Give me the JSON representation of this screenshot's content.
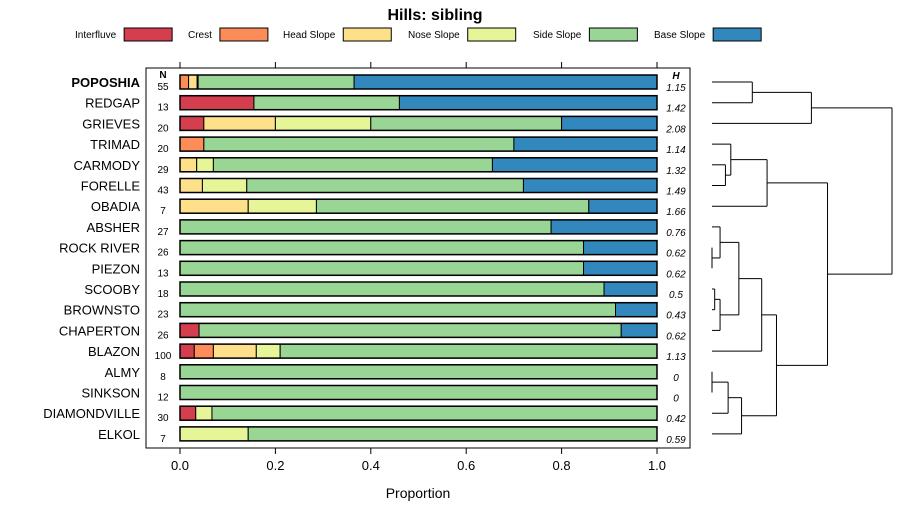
{
  "chart_data": {
    "type": "bar",
    "orientation": "horizontal",
    "stacked": true,
    "title": "Hills: sibling",
    "xlabel": "Proportion",
    "ylabel": "",
    "xlim": [
      0,
      1
    ],
    "x_ticks": [
      0.0,
      0.2,
      0.4,
      0.6,
      0.8,
      1.0
    ],
    "x_tick_labels": [
      "0.0",
      "0.2",
      "0.4",
      "0.6",
      "0.8",
      "1.0"
    ],
    "n_header": "N",
    "h_header": "H",
    "legend_position": "top",
    "highlighted_category": "POPOSHIA",
    "categories": [
      "POPOSHIA",
      "REDGAP",
      "GRIEVES",
      "TRIMAD",
      "CARMODY",
      "FORELLE",
      "OBADIA",
      "ABSHER",
      "ROCK RIVER",
      "PIEZON",
      "SCOOBY",
      "BROWNSTO",
      "CHAPERTON",
      "BLAZON",
      "ALMY",
      "SINKSON",
      "DIAMONDVILLE",
      "ELKOL"
    ],
    "n_values": [
      "55",
      "13",
      "20",
      "20",
      "29",
      "43",
      "7",
      "27",
      "26",
      "13",
      "18",
      "23",
      "26",
      "100",
      "8",
      "12",
      "30",
      "7"
    ],
    "h_values": [
      "1.15",
      "1.42",
      "2.08",
      "1.14",
      "1.32",
      "1.49",
      "1.66",
      "0.76",
      "0.62",
      "0.62",
      "0.5",
      "0.43",
      "0.62",
      "1.13",
      "0",
      "0",
      "0.42",
      "0.59"
    ],
    "series": [
      {
        "name": "Interfluve",
        "color": "#D53E4F",
        "values": [
          0,
          0.155,
          0.05,
          0,
          0,
          0,
          0,
          0,
          0,
          0,
          0,
          0,
          0.04,
          0.03,
          0,
          0,
          0.033,
          0
        ]
      },
      {
        "name": "Crest",
        "color": "#FC8D59",
        "values": [
          0.018,
          0,
          0,
          0.05,
          0,
          0,
          0,
          0,
          0,
          0,
          0,
          0,
          0,
          0.04,
          0,
          0,
          0,
          0
        ]
      },
      {
        "name": "Head Slope",
        "color": "#FEE08B",
        "values": [
          0.018,
          0,
          0.15,
          0,
          0.035,
          0.047,
          0.143,
          0,
          0,
          0,
          0,
          0,
          0,
          0.09,
          0,
          0,
          0,
          0
        ]
      },
      {
        "name": "Nose Slope",
        "color": "#E6F598",
        "values": [
          0.002,
          0,
          0.2,
          0,
          0.035,
          0.093,
          0.143,
          0,
          0,
          0,
          0,
          0,
          0,
          0.05,
          0,
          0,
          0.034,
          0.143
        ]
      },
      {
        "name": "Side Slope",
        "color": "#99D594",
        "values": [
          0.327,
          0.305,
          0.4,
          0.65,
          0.585,
          0.58,
          0.571,
          0.778,
          0.846,
          0.846,
          0.889,
          0.913,
          0.885,
          0.79,
          1.0,
          1.0,
          0.933,
          0.857
        ]
      },
      {
        "name": "Base Slope",
        "color": "#3288BD",
        "values": [
          0.635,
          0.54,
          0.2,
          0.3,
          0.345,
          0.28,
          0.143,
          0.222,
          0.154,
          0.154,
          0.111,
          0.087,
          0.075,
          0,
          0,
          0,
          0,
          0
        ]
      }
    ],
    "dendrogram": {
      "leaves": [
        "POPOSHIA",
        "REDGAP",
        "GRIEVES",
        "TRIMAD",
        "CARMODY",
        "FORELLE",
        "OBADIA",
        "ABSHER",
        "ROCK RIVER",
        "PIEZON",
        "SCOOBY",
        "BROWNSTO",
        "CHAPERTON",
        "BLAZON",
        "ALMY",
        "SINKSON",
        "DIAMONDVILLE",
        "ELKOL"
      ],
      "merges": [
        {
          "left": "ROCK RIVER",
          "right": "PIEZON",
          "height": 0.0
        },
        {
          "left": "SCOOBY",
          "right": "BROWNSTO",
          "height": 0.02
        },
        {
          "left": "FORELLE",
          "right": "CARMODY",
          "height": 0.1
        },
        {
          "left": "m0",
          "right": "ABSHER",
          "height": 0.06
        },
        {
          "left": "m1",
          "right": "CHAPERTON",
          "height": 0.06
        },
        {
          "left": "SINKSON",
          "right": "ALMY",
          "height": 0.0
        },
        {
          "left": "m5",
          "right": "DIAMONDVILLE",
          "height": 0.12
        },
        {
          "left": "TRIMAD",
          "right": "m2",
          "height": 0.14
        },
        {
          "left": "m3",
          "right": "m4",
          "height": 0.2
        },
        {
          "left": "m6",
          "right": "ELKOL",
          "height": 0.22
        },
        {
          "left": "POPOSHIA",
          "right": "REDGAP",
          "height": 0.3
        },
        {
          "left": "m8",
          "right": "BLAZON",
          "height": 0.37
        },
        {
          "left": "m7",
          "right": "OBADIA",
          "height": 0.41
        },
        {
          "left": "m11",
          "right": "m9",
          "height": 0.48
        },
        {
          "left": "m12",
          "right": "m13",
          "height": 0.86
        },
        {
          "left": "m10",
          "right": "GRIEVES",
          "height": 0.74
        },
        {
          "left": "m15",
          "right": "m14",
          "height": 1.34
        }
      ]
    }
  }
}
